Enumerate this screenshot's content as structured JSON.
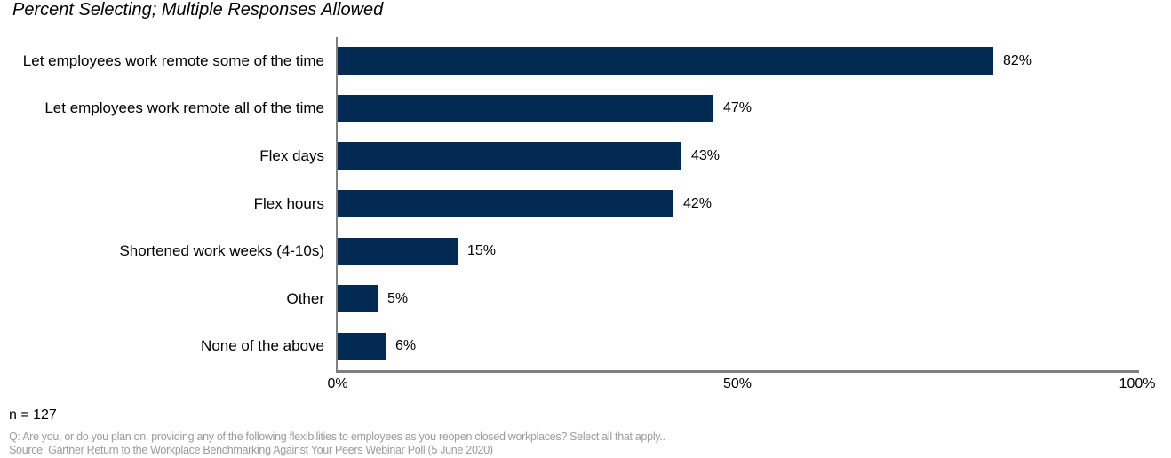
{
  "chart_data": {
    "type": "bar",
    "orientation": "horizontal",
    "title": "Percent Selecting; Multiple Responses Allowed",
    "categories": [
      "Let employees work remote some of the time",
      "Let employees work remote all of the time",
      "Flex days",
      "Flex hours",
      "Shortened work weeks (4-10s)",
      "Other",
      "None of the above"
    ],
    "values": [
      82,
      47,
      43,
      42,
      15,
      5,
      6
    ],
    "value_labels": [
      "82%",
      "47%",
      "43%",
      "42%",
      "15%",
      "5%",
      "6%"
    ],
    "xlim": [
      0,
      100
    ],
    "x_ticks": [
      {
        "value": 0,
        "label": "0%"
      },
      {
        "value": 50,
        "label": "50%"
      },
      {
        "value": 100,
        "label": "100%"
      }
    ],
    "grid": false,
    "legend": "none",
    "bar_color": "#032a52",
    "axis_color": "#808080"
  },
  "footer": {
    "sample_size": "n = 127",
    "question": "Q: Are you, or do you plan on, providing any of the following flexibilities to employees as you reopen closed workplaces? Select all that apply..",
    "source": "Source: Gartner Return to the Workplace Benchmarking Against Your Peers Webinar Poll (5 June 2020)"
  }
}
